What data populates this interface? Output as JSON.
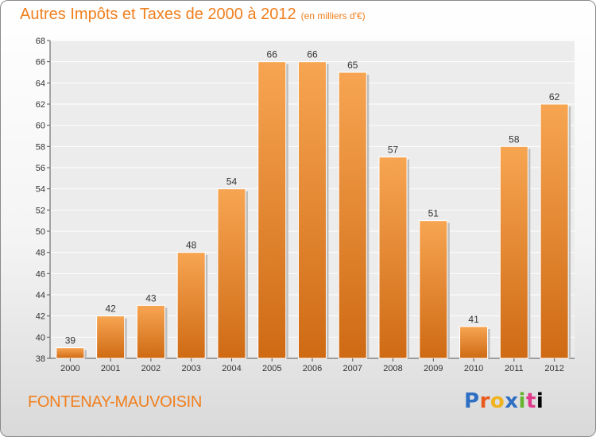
{
  "header": {
    "title": "Autres Impôts et Taxes de 2000 à 2012",
    "unit": "(en milliers d'€)"
  },
  "footer": {
    "town": "FONTENAY-MAUVOISIN",
    "logo": "Proxiti"
  },
  "colors": {
    "accent": "#f07f1e",
    "bar_light": "#f7a552",
    "bar_dark": "#cf6a14"
  },
  "chart_data": {
    "type": "bar",
    "title": "Autres Impôts et Taxes de 2000 à 2012",
    "subtitle": "(en milliers d'€)",
    "xlabel": "",
    "ylabel": "",
    "categories": [
      "2000",
      "2001",
      "2002",
      "2003",
      "2004",
      "2005",
      "2006",
      "2007",
      "2008",
      "2009",
      "2010",
      "2011",
      "2012"
    ],
    "values": [
      39,
      42,
      43,
      48,
      54,
      66,
      66,
      65,
      57,
      51,
      41,
      58,
      62
    ],
    "ylim": [
      38,
      68
    ],
    "yticks": [
      38,
      40,
      42,
      44,
      46,
      48,
      50,
      52,
      54,
      56,
      58,
      60,
      62,
      64,
      66,
      68
    ],
    "grid": true,
    "legend": "none"
  }
}
